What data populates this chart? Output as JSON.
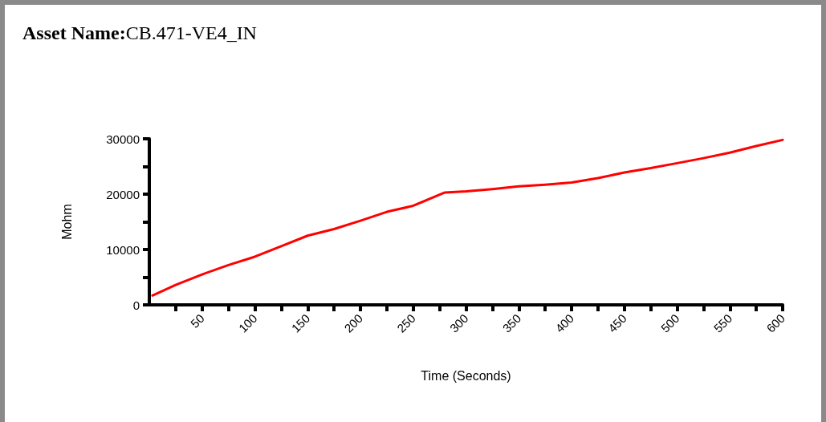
{
  "chart_data": {
    "type": "line",
    "title": "Asset Name:CB.471-VE4_IN",
    "xlabel": "Time (Seconds)",
    "ylabel": "Mohm",
    "x": [
      3,
      25,
      50,
      75,
      100,
      125,
      150,
      175,
      200,
      225,
      250,
      270,
      280,
      290,
      300,
      325,
      350,
      375,
      400,
      425,
      450,
      475,
      500,
      525,
      550,
      575,
      600
    ],
    "series": [
      {
        "color": "#ff0000",
        "values": [
          1700,
          3600,
          5500,
          7200,
          8700,
          10600,
          12500,
          13700,
          15200,
          16800,
          17900,
          19500,
          20300,
          20400,
          20500,
          20900,
          21400,
          21700,
          22100,
          22900,
          23900,
          24700,
          25600,
          26500,
          27500,
          28700,
          29800
        ]
      }
    ],
    "xlim": [
      0,
      600
    ],
    "xticks": [
      {
        "value": 25,
        "label": null
      },
      50,
      {
        "value": 75,
        "label": null
      },
      100,
      {
        "value": 125,
        "label": null
      },
      150,
      {
        "value": 175,
        "label": null
      },
      200,
      {
        "value": 225,
        "label": null
      },
      250,
      {
        "value": 275,
        "label": null
      },
      300,
      {
        "value": 325,
        "label": null
      },
      350,
      {
        "value": 375,
        "label": null
      },
      400,
      {
        "value": 425,
        "label": null
      },
      450,
      {
        "value": 475,
        "label": null
      },
      500,
      {
        "value": 525,
        "label": null
      },
      550,
      {
        "value": 575,
        "label": null
      },
      600
    ],
    "ylim": [
      0,
      30000
    ],
    "yticks": [
      0,
      {
        "value": 5000,
        "label": null
      },
      10000,
      {
        "value": 15000,
        "label": null
      },
      20000,
      {
        "value": 25000,
        "label": null
      },
      30000
    ],
    "grid": false,
    "marker": "none",
    "line_style": "solid"
  }
}
